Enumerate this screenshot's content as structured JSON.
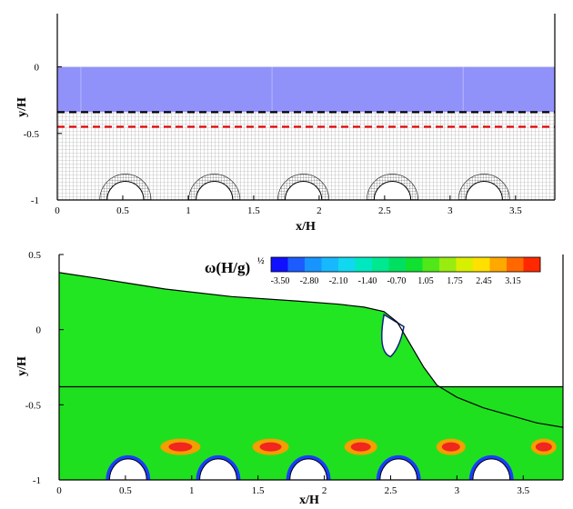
{
  "panels": [
    {
      "id": "top",
      "xlabel": "x/H",
      "ylabel": "y/H",
      "xlim": [
        0,
        3.8
      ],
      "ylim": [
        -1,
        0.4
      ],
      "xticks": [
        "0",
        "0.5",
        "1",
        "1.5",
        "2",
        "2.5",
        "3",
        "3.5"
      ],
      "yticks": [
        "0",
        "-0.5",
        "-1"
      ],
      "free_surface_y": 0,
      "bed_y": -1,
      "black_dashed_line_y": -0.34,
      "red_dashed_line_y": -0.45,
      "cylinder_centers_x": [
        0.52,
        1.2,
        1.88,
        2.56,
        3.26
      ],
      "cylinder_radius": 0.14
    },
    {
      "id": "bottom",
      "xlabel": "x/H",
      "ylabel": "y/H",
      "xlim": [
        0,
        3.8
      ],
      "ylim": [
        -1,
        0.5
      ],
      "xticks": [
        "0",
        "0.5",
        "1",
        "1.5",
        "2",
        "2.5",
        "3",
        "3.5"
      ],
      "yticks": [
        "0.5",
        "0",
        "-0.5",
        "-1"
      ],
      "interface_y": -0.38,
      "cylinder_centers_x": [
        0.52,
        1.2,
        1.88,
        2.56,
        3.26
      ],
      "cylinder_radius": 0.14
    }
  ],
  "colorbar": {
    "label": "ω(H/g)",
    "label_exponent": "½",
    "ticks": [
      "-3.50",
      "-2.80",
      "-2.10",
      "-1.40",
      "-0.70",
      "1.05",
      "1.75",
      "2.45",
      "3.15"
    ],
    "colors": [
      "#1010ff",
      "#1c5cff",
      "#1894ff",
      "#18b8ff",
      "#10d8f0",
      "#00e8c0",
      "#00e890",
      "#00e060",
      "#10e030",
      "#50e818",
      "#98ec10",
      "#d8f000",
      "#ffe000",
      "#ffa800",
      "#ff6800",
      "#ff2800"
    ]
  },
  "chart_data": [
    {
      "type": "area",
      "xlabel": "x/H",
      "ylabel": "y/H",
      "xlim": [
        0,
        3.8
      ],
      "ylim": [
        -1,
        0.4
      ],
      "x": [
        0,
        3.8
      ],
      "series": [
        {
          "values": [
            0,
            0
          ]
        },
        {
          "values": [
            -0.34,
            -0.34
          ]
        },
        {
          "values": [
            -0.45,
            -0.45
          ]
        }
      ]
    },
    {
      "type": "line",
      "xlabel": "x/H",
      "ylabel": "y/H",
      "xlim": [
        0,
        3.8
      ],
      "ylim": [
        -1,
        0.5
      ],
      "x": [
        0,
        0.3,
        0.8,
        1.3,
        1.8,
        2.1,
        2.3,
        2.45,
        2.55,
        2.65,
        2.75,
        2.85,
        3.0,
        3.2,
        3.4,
        3.6,
        3.8
      ],
      "series": [
        {
          "values": [
            0.38,
            0.34,
            0.27,
            0.22,
            0.19,
            0.17,
            0.15,
            0.12,
            0.05,
            -0.1,
            -0.25,
            -0.37,
            -0.45,
            -0.52,
            -0.57,
            -0.62,
            -0.65
          ]
        }
      ],
      "colorbar_ticks": [
        -3.5,
        -2.8,
        -2.1,
        -1.4,
        -0.7,
        1.05,
        1.75,
        2.45,
        3.15
      ]
    }
  ]
}
